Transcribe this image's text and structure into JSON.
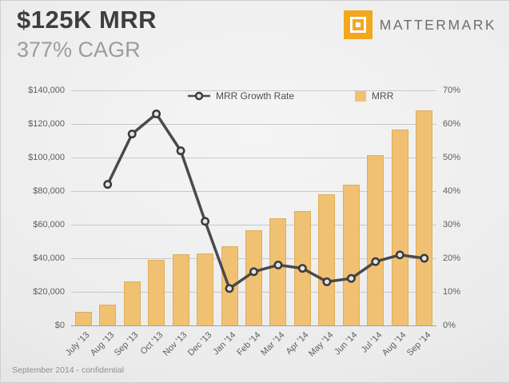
{
  "header": {
    "title": "$125K MRR",
    "subtitle": "377% CAGR"
  },
  "logo": {
    "text": "MATTERMARK",
    "color": "#f2a71e"
  },
  "legend": {
    "growth": "MRR Growth Rate",
    "mrr": "MRR"
  },
  "footer": {
    "text": "September 2014 - confidential"
  },
  "chart_data": {
    "type": "bar+line",
    "title": "$125K MRR",
    "categories": [
      "July '13",
      "Aug '13",
      "Sep '13",
      "Oct '13",
      "Nov '13",
      "Dec '13",
      "Jan '14",
      "Feb '14",
      "Mar '14",
      "Apr '14",
      "May '14",
      "Jun '14",
      "Jul '14",
      "Aug '14",
      "Sep '14"
    ],
    "series": [
      {
        "name": "MRR",
        "type": "bar",
        "axis": "left",
        "color": "#f0c172",
        "values": [
          8000,
          12500,
          26000,
          39000,
          42500,
          43000,
          47000,
          56500,
          64000,
          68000,
          78000,
          84000,
          101500,
          116500,
          128000
        ]
      },
      {
        "name": "MRR Growth Rate",
        "type": "line",
        "axis": "right",
        "color": "#4a4a4a",
        "marker_fill": "#e3e3e3",
        "marker_stroke": "#3a3a3a",
        "values": [
          null,
          42,
          57,
          63,
          52,
          31,
          11,
          16,
          18,
          17,
          13,
          14,
          19,
          21,
          20
        ]
      }
    ],
    "left_axis": {
      "label_format": "currency",
      "ticks": [
        "$0",
        "$20,000",
        "$40,000",
        "$60,000",
        "$80,000",
        "$100,000",
        "$120,000",
        "$140,000"
      ],
      "min": 0,
      "max": 140000
    },
    "right_axis": {
      "label_format": "percent",
      "ticks": [
        "0%",
        "10%",
        "20%",
        "30%",
        "40%",
        "50%",
        "60%",
        "70%"
      ],
      "min": 0,
      "max": 70
    },
    "grid": true,
    "legend_position": "top-inside"
  }
}
